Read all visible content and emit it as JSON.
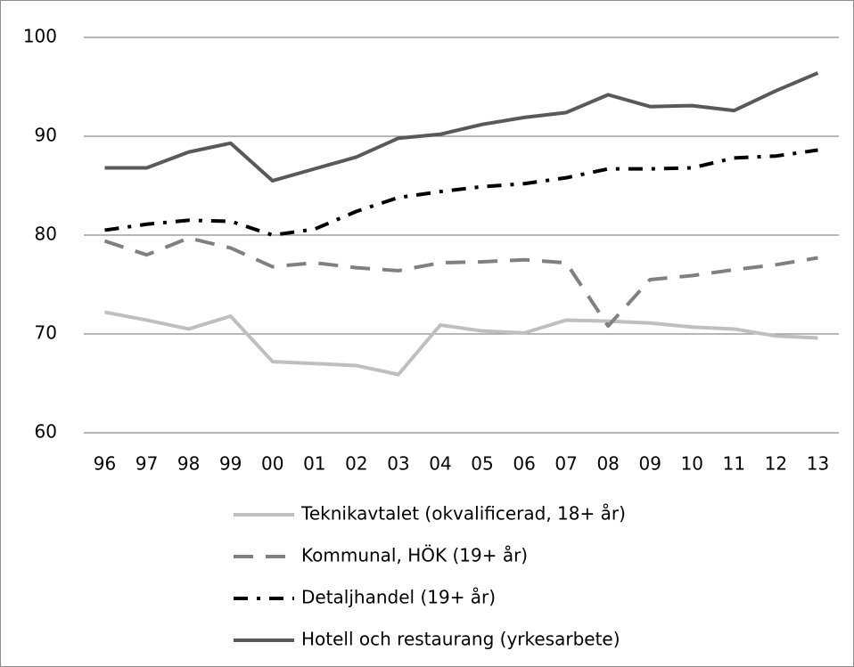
{
  "chart_data": {
    "type": "line",
    "categories": [
      "96",
      "97",
      "98",
      "99",
      "00",
      "01",
      "02",
      "03",
      "04",
      "05",
      "06",
      "07",
      "08",
      "09",
      "10",
      "11",
      "12",
      "13"
    ],
    "ylim": [
      60,
      100
    ],
    "yticks": [
      60,
      70,
      80,
      90,
      100
    ],
    "grid": true,
    "legend": "bottom",
    "series": [
      {
        "name": "Teknikavtalet (okvalificerad, 18+ år)",
        "color": "#bfbfbf",
        "dash": "solid",
        "values": [
          72.2,
          71.4,
          70.5,
          71.8,
          67.2,
          67.0,
          66.8,
          65.9,
          70.9,
          70.3,
          70.1,
          71.4,
          71.3,
          71.1,
          70.7,
          70.5,
          69.8,
          69.6
        ]
      },
      {
        "name": "Kommunal, HÖK (19+ år)",
        "color": "#808080",
        "dash": "dashed",
        "values": [
          79.4,
          78.0,
          79.7,
          78.7,
          76.8,
          77.2,
          76.7,
          76.4,
          77.2,
          77.3,
          77.5,
          77.2,
          70.8,
          75.5,
          75.9,
          76.5,
          77.0,
          77.7
        ]
      },
      {
        "name": "Detaljhandel (19+ år)",
        "color": "#000000",
        "dash": "dashdot",
        "values": [
          80.5,
          81.1,
          81.5,
          81.4,
          80.0,
          80.6,
          82.4,
          83.8,
          84.4,
          84.9,
          85.2,
          85.8,
          86.7,
          86.7,
          86.8,
          87.8,
          88.0,
          88.6
        ]
      },
      {
        "name": "Hotell och restaurang (yrkesarbete)",
        "color": "#595959",
        "dash": "solid",
        "values": [
          86.8,
          86.8,
          88.4,
          89.3,
          85.5,
          86.7,
          87.9,
          89.8,
          90.2,
          91.2,
          91.9,
          92.4,
          94.2,
          93.0,
          93.1,
          92.6,
          94.6,
          96.4
        ]
      }
    ]
  }
}
